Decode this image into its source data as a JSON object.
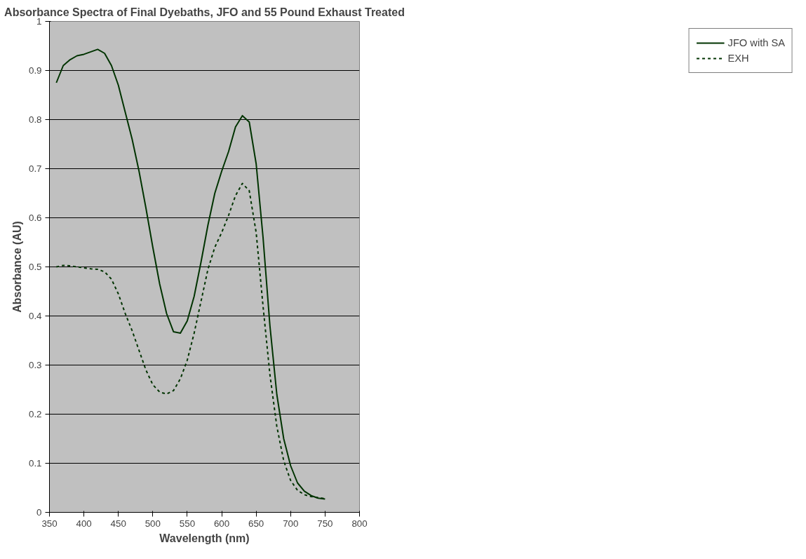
{
  "chart_data": {
    "type": "line",
    "title": "Absorbance Spectra of Final Dyebaths, JFO and 55 Pound Exhaust Treated",
    "xlabel": "Wavelength (nm)",
    "ylabel": "Absorbance (AU)",
    "x": [
      360,
      370,
      380,
      390,
      400,
      410,
      420,
      430,
      440,
      450,
      460,
      470,
      480,
      490,
      500,
      510,
      520,
      530,
      540,
      550,
      560,
      570,
      580,
      590,
      600,
      610,
      620,
      630,
      640,
      650,
      660,
      670,
      680,
      690,
      700,
      710,
      720,
      730,
      740,
      750
    ],
    "series": [
      {
        "name": "JFO with SA",
        "color": "#003300",
        "line_style": "solid",
        "values": [
          0.875,
          0.91,
          0.922,
          0.93,
          0.933,
          0.938,
          0.943,
          0.935,
          0.91,
          0.87,
          0.815,
          0.76,
          0.695,
          0.62,
          0.54,
          0.465,
          0.405,
          0.368,
          0.365,
          0.39,
          0.44,
          0.51,
          0.585,
          0.65,
          0.695,
          0.735,
          0.785,
          0.808,
          0.795,
          0.71,
          0.56,
          0.38,
          0.24,
          0.15,
          0.095,
          0.06,
          0.043,
          0.034,
          0.029,
          0.027
        ]
      },
      {
        "name": "EXH",
        "color": "#003300",
        "line_style": "dashed",
        "values": [
          0.5,
          0.503,
          0.502,
          0.5,
          0.498,
          0.496,
          0.495,
          0.49,
          0.475,
          0.445,
          0.405,
          0.37,
          0.33,
          0.29,
          0.26,
          0.245,
          0.241,
          0.248,
          0.272,
          0.31,
          0.365,
          0.43,
          0.495,
          0.54,
          0.57,
          0.605,
          0.645,
          0.67,
          0.655,
          0.57,
          0.42,
          0.28,
          0.175,
          0.105,
          0.065,
          0.045,
          0.036,
          0.032,
          0.03,
          0.028
        ]
      }
    ],
    "xlim": [
      350,
      800
    ],
    "xticks": [
      350,
      400,
      450,
      500,
      550,
      600,
      650,
      700,
      750,
      800
    ],
    "ylim": [
      0,
      1
    ],
    "yticks": [
      0,
      0.1,
      0.2,
      0.3,
      0.4,
      0.5,
      0.6,
      0.7,
      0.8,
      0.9,
      1
    ],
    "grid": "y",
    "legend": "right",
    "marker": "none"
  }
}
